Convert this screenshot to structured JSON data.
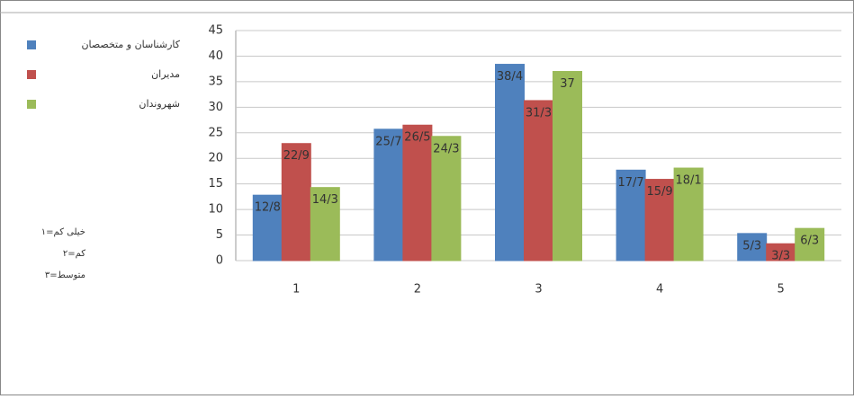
{
  "chart_data": {
    "type": "bar",
    "categories": [
      "1",
      "2",
      "3",
      "4",
      "5"
    ],
    "series": [
      {
        "name": "کارشناسان و متخصصان",
        "color": "#4f81bd",
        "values": [
          12.8,
          25.7,
          38.4,
          17.7,
          5.3
        ],
        "value_labels": [
          "12/8",
          "25/7",
          "38/4",
          "17/7",
          "5/3"
        ]
      },
      {
        "name": "مدیران",
        "color": "#c0504d",
        "values": [
          22.9,
          26.5,
          31.3,
          15.9,
          3.3
        ],
        "value_labels": [
          "22/9",
          "26/5",
          "31/3",
          "15/9",
          "3/3"
        ]
      },
      {
        "name": "شهروندان",
        "color": "#9bbb59",
        "values": [
          14.3,
          24.3,
          37,
          18.1,
          6.3
        ],
        "value_labels": [
          "14/3",
          "24/3",
          "37",
          "18/1",
          "6/3"
        ]
      }
    ],
    "annotations": [
      "۱=خیلی کم",
      "۲=کم",
      "۳=متوسط"
    ],
    "ylim": [
      0,
      45
    ],
    "yticks": [
      0,
      5,
      10,
      15,
      20,
      25,
      30,
      35,
      40,
      45
    ],
    "grid": true
  }
}
